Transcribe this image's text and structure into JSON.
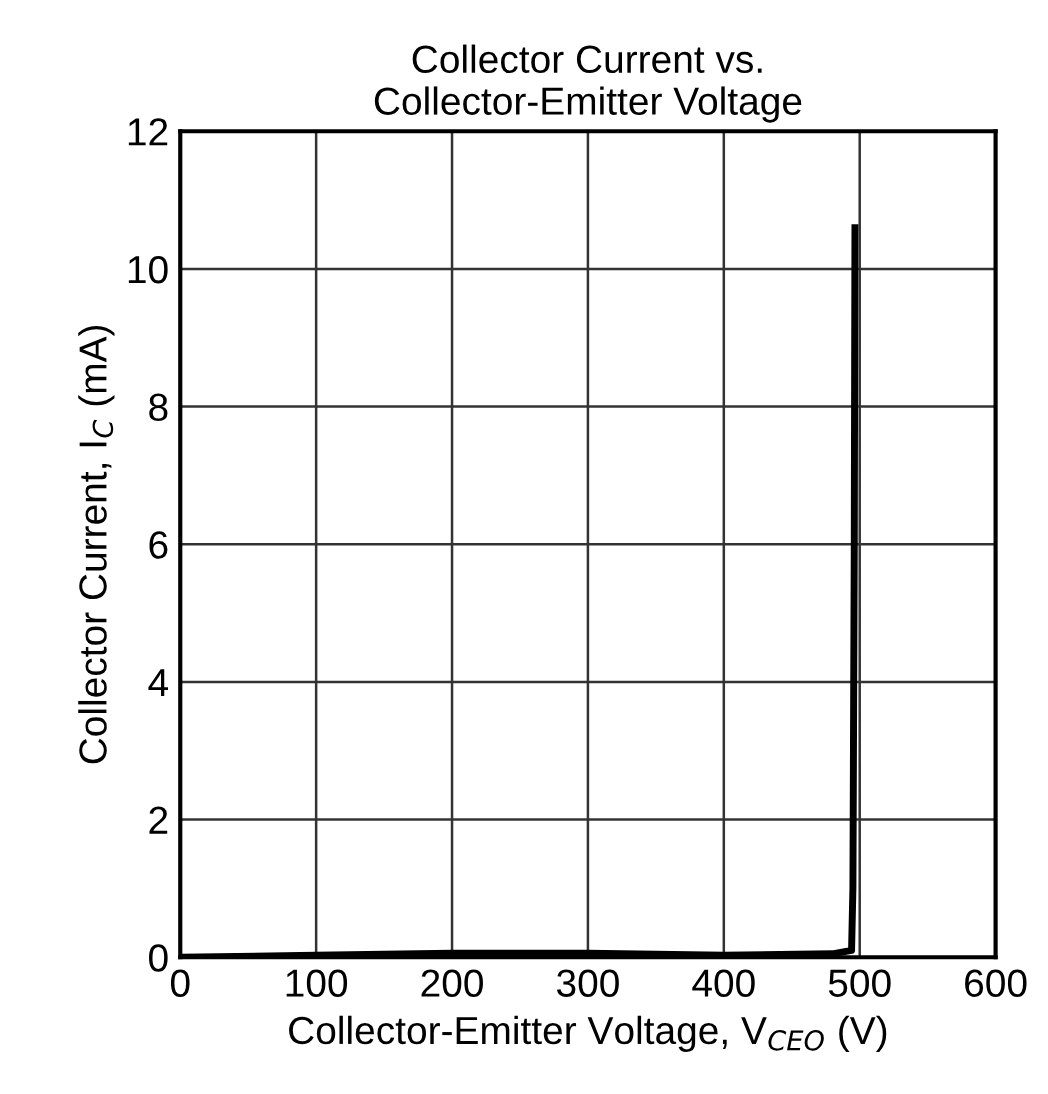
{
  "chart_data": {
    "type": "line",
    "title": "Collector Current vs.\nCollector-Emitter Voltage",
    "xlabel": "Collector-Emitter Voltage, V$_{CEO}$ (V)",
    "ylabel": "Collector Current, I$_{C}$ (mA)",
    "series": [
      {
        "color": "#000000",
        "x": [
          0,
          100,
          200,
          300,
          400,
          480,
          494,
          495,
          496,
          496.5
        ],
        "values": [
          0,
          0.03,
          0.06,
          0.06,
          0.03,
          0.05,
          0.1,
          1,
          6,
          10.6
        ]
      }
    ],
    "xlim": [
      0,
      600
    ],
    "xticks": [
      0,
      100,
      200,
      300,
      400,
      500,
      600
    ],
    "ylim": [
      0,
      12
    ],
    "yticks": [
      0,
      2,
      4,
      6,
      8,
      10,
      12
    ],
    "grid": true,
    "marker": "none",
    "line_style": "solid",
    "legend": false
  }
}
